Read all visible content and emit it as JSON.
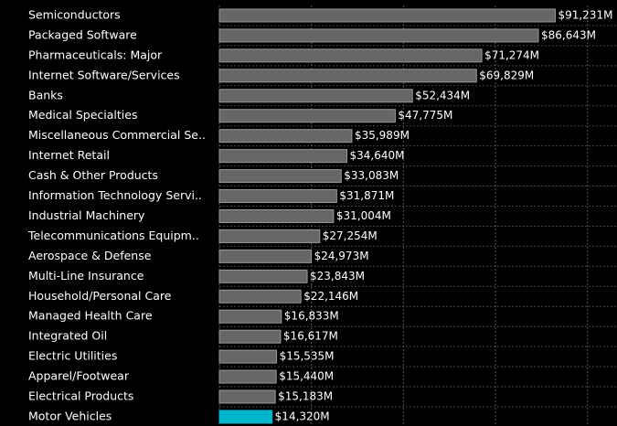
{
  "chart_data": {
    "type": "bar",
    "orientation": "horizontal",
    "categories": [
      "Semiconductors",
      "Packaged Software",
      "Pharmaceuticals: Major",
      "Internet Software/Services",
      "Banks",
      "Medical Specialties",
      "Miscellaneous Commercial Se..",
      "Internet Retail",
      "Cash & Other Products",
      "Information Technology Servi..",
      "Industrial Machinery",
      "Telecommunications Equipm..",
      "Aerospace & Defense",
      "Multi-Line Insurance",
      "Household/Personal Care",
      "Managed Health Care",
      "Integrated Oil",
      "Electric Utilities",
      "Apparel/Footwear",
      "Electrical Products",
      "Motor Vehicles"
    ],
    "values": [
      91231,
      86643,
      71274,
      69829,
      52434,
      47775,
      35989,
      34640,
      33083,
      31871,
      31004,
      27254,
      24973,
      23843,
      22146,
      16833,
      16617,
      15535,
      15440,
      15183,
      14320
    ],
    "value_labels": [
      "$91,231M",
      "$86,643M",
      "$71,274M",
      "$69,829M",
      "$52,434M",
      "$47,775M",
      "$35,989M",
      "$34,640M",
      "$33,083M",
      "$31,871M",
      "$31,004M",
      "$27,254M",
      "$24,973M",
      "$23,843M",
      "$22,146M",
      "$16,833M",
      "$16,617M",
      "$15,535M",
      "$15,440M",
      "$15,183M",
      "$14,320M"
    ],
    "colors": [
      "#666666",
      "#666666",
      "#666666",
      "#666666",
      "#666666",
      "#666666",
      "#666666",
      "#666666",
      "#666666",
      "#666666",
      "#666666",
      "#666666",
      "#666666",
      "#666666",
      "#666666",
      "#666666",
      "#666666",
      "#666666",
      "#666666",
      "#666666",
      "#00b4cc"
    ],
    "xlim": [
      0,
      108000
    ],
    "xticks": [
      0,
      25000,
      50000,
      75000,
      100000
    ],
    "grid": true
  }
}
